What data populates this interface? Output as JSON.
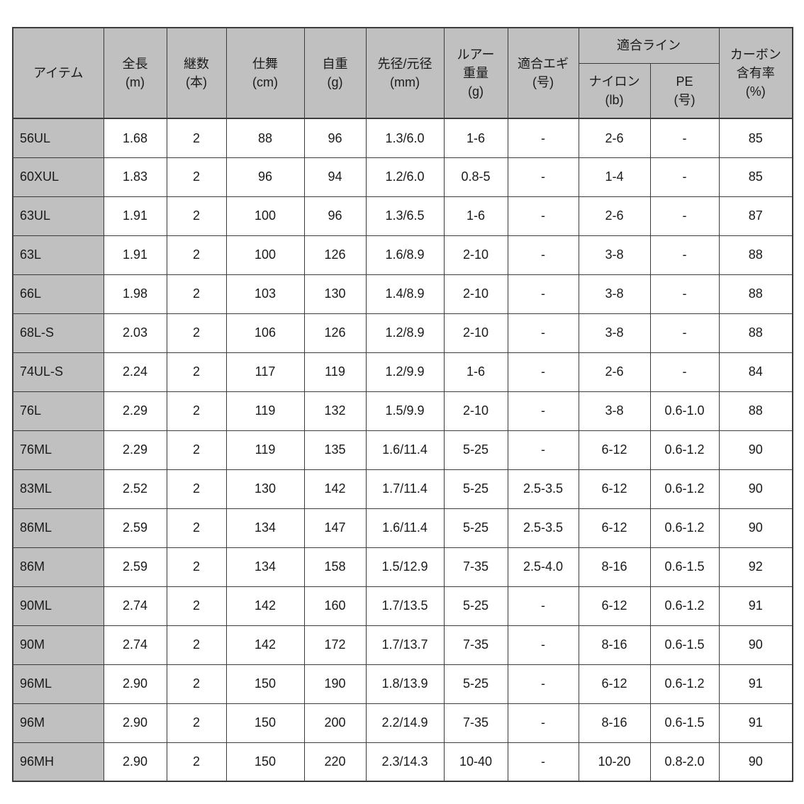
{
  "colors": {
    "header_bg": "#c0c0c0",
    "cell_bg": "#ffffff",
    "border": "#3c3c3c",
    "text": "#1a1a1a"
  },
  "table": {
    "headers": {
      "item": "アイテム",
      "length": "全長\n(m)",
      "sections": "継数\n(本)",
      "closed_length": "仕舞\n(cm)",
      "weight": "自重\n(g)",
      "tip_butt_diameter": "先径/元径\n(mm)",
      "lure_weight": "ルアー\n重量\n(g)",
      "egi_size": "適合エギ\n(号)",
      "line_group": "適合ライン",
      "nylon": "ナイロン\n(lb)",
      "pe": "PE\n(号)",
      "carbon_content": "カーボン\n含有率\n(%)"
    },
    "rows": [
      {
        "item": "56UL",
        "cells": [
          "1.68",
          "2",
          "88",
          "96",
          "1.3/6.0",
          "1-6",
          "-",
          "2-6",
          "-",
          "85"
        ]
      },
      {
        "item": "60XUL",
        "cells": [
          "1.83",
          "2",
          "96",
          "94",
          "1.2/6.0",
          "0.8-5",
          "-",
          "1-4",
          "-",
          "85"
        ]
      },
      {
        "item": "63UL",
        "cells": [
          "1.91",
          "2",
          "100",
          "96",
          "1.3/6.5",
          "1-6",
          "-",
          "2-6",
          "-",
          "87"
        ]
      },
      {
        "item": "63L",
        "cells": [
          "1.91",
          "2",
          "100",
          "126",
          "1.6/8.9",
          "2-10",
          "-",
          "3-8",
          "-",
          "88"
        ]
      },
      {
        "item": "66L",
        "cells": [
          "1.98",
          "2",
          "103",
          "130",
          "1.4/8.9",
          "2-10",
          "-",
          "3-8",
          "-",
          "88"
        ]
      },
      {
        "item": "68L-S",
        "cells": [
          "2.03",
          "2",
          "106",
          "126",
          "1.2/8.9",
          "2-10",
          "-",
          "3-8",
          "-",
          "88"
        ]
      },
      {
        "item": "74UL-S",
        "cells": [
          "2.24",
          "2",
          "117",
          "119",
          "1.2/9.9",
          "1-6",
          "-",
          "2-6",
          "-",
          "84"
        ]
      },
      {
        "item": "76L",
        "cells": [
          "2.29",
          "2",
          "119",
          "132",
          "1.5/9.9",
          "2-10",
          "-",
          "3-8",
          "0.6-1.0",
          "88"
        ]
      },
      {
        "item": "76ML",
        "cells": [
          "2.29",
          "2",
          "119",
          "135",
          "1.6/11.4",
          "5-25",
          "-",
          "6-12",
          "0.6-1.2",
          "90"
        ]
      },
      {
        "item": "83ML",
        "cells": [
          "2.52",
          "2",
          "130",
          "142",
          "1.7/11.4",
          "5-25",
          "2.5-3.5",
          "6-12",
          "0.6-1.2",
          "90"
        ]
      },
      {
        "item": "86ML",
        "cells": [
          "2.59",
          "2",
          "134",
          "147",
          "1.6/11.4",
          "5-25",
          "2.5-3.5",
          "6-12",
          "0.6-1.2",
          "90"
        ]
      },
      {
        "item": "86M",
        "cells": [
          "2.59",
          "2",
          "134",
          "158",
          "1.5/12.9",
          "7-35",
          "2.5-4.0",
          "8-16",
          "0.6-1.5",
          "92"
        ]
      },
      {
        "item": "90ML",
        "cells": [
          "2.74",
          "2",
          "142",
          "160",
          "1.7/13.5",
          "5-25",
          "-",
          "6-12",
          "0.6-1.2",
          "91"
        ]
      },
      {
        "item": "90M",
        "cells": [
          "2.74",
          "2",
          "142",
          "172",
          "1.7/13.7",
          "7-35",
          "-",
          "8-16",
          "0.6-1.5",
          "90"
        ]
      },
      {
        "item": "96ML",
        "cells": [
          "2.90",
          "2",
          "150",
          "190",
          "1.8/13.9",
          "5-25",
          "-",
          "6-12",
          "0.6-1.2",
          "91"
        ]
      },
      {
        "item": "96M",
        "cells": [
          "2.90",
          "2",
          "150",
          "200",
          "2.2/14.9",
          "7-35",
          "-",
          "8-16",
          "0.6-1.5",
          "91"
        ]
      },
      {
        "item": "96MH",
        "cells": [
          "2.90",
          "2",
          "150",
          "220",
          "2.3/14.3",
          "10-40",
          "-",
          "10-20",
          "0.8-2.0",
          "90"
        ]
      }
    ]
  }
}
